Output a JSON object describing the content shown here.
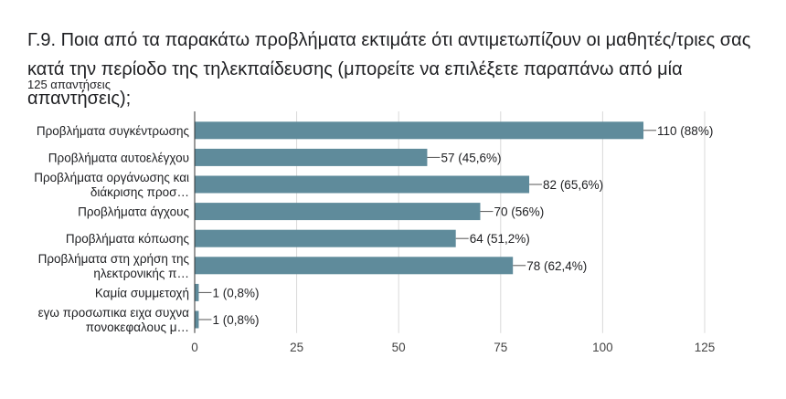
{
  "question": "Γ.9. Ποια από τα παρακάτω προβλήματα εκτιμάτε ότι αντιμετωπίζουν οι μαθητές/τριες σας κατά την περίοδο της τηλεκπαίδευσης (μπορείτε να επιλέξετε παραπάνω από μία απαντήσεις);",
  "response_count": "125 απαντήσεις",
  "chart_data": {
    "type": "bar",
    "orientation": "horizontal",
    "bar_color": "#5f8b9b",
    "xlim": [
      0,
      125
    ],
    "xticks": [
      0,
      25,
      50,
      75,
      100,
      125
    ],
    "grid": true,
    "categories": [
      [
        "Προβλήματα συγκέντρωσης"
      ],
      [
        "Προβλήματα αυτοελέγχου"
      ],
      [
        "Προβλήματα οργάνωσης και",
        "διάκρισης προσ…"
      ],
      [
        "Προβλήματα άγχους"
      ],
      [
        "Προβλήματα κόπωσης"
      ],
      [
        "Προβλήματα στη χρήση της",
        "ηλεκτρονικής π…"
      ],
      [
        "Καμία συμμετοχή"
      ],
      [
        "εγω προσωπικα ειχα συχνα",
        "πονοκεφαλους μ…"
      ]
    ],
    "values": [
      110,
      57,
      82,
      70,
      64,
      78,
      1,
      1
    ],
    "data_labels": [
      "110 (88%)",
      "57 (45,6%)",
      "82 (65,6%)",
      "70 (56%)",
      "64 (51,2%)",
      "78 (62,4%)",
      "1 (0,8%)",
      "1 (0,8%)"
    ]
  }
}
